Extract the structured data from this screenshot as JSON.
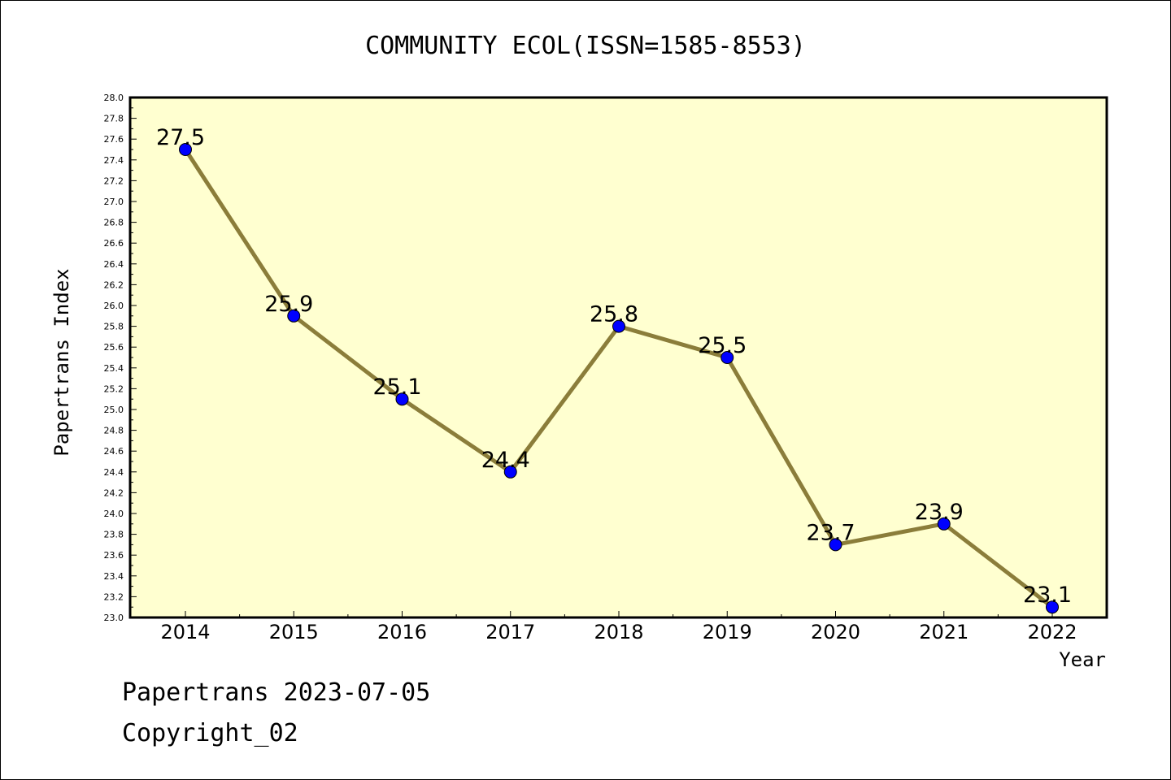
{
  "chart_data": {
    "type": "line",
    "title": "COMMUNITY ECOL(ISSN=1585-8553)",
    "xlabel": "Year",
    "ylabel": "Papertrans Index",
    "categories": [
      "2014",
      "2015",
      "2016",
      "2017",
      "2018",
      "2019",
      "2020",
      "2021",
      "2022"
    ],
    "series": [
      {
        "values": [
          27.5,
          25.9,
          25.1,
          24.4,
          25.8,
          25.5,
          23.7,
          23.9,
          23.1
        ],
        "labels": [
          "27.5",
          "25.9",
          "25.1",
          "24.4",
          "25.8",
          "25.5",
          "23.7",
          "23.9",
          "23.1"
        ]
      }
    ],
    "ylim": [
      23.0,
      28.0
    ],
    "yticks": [
      "23.0",
      "23.2",
      "23.4",
      "23.6",
      "23.8",
      "24.0",
      "24.2",
      "24.4",
      "24.6",
      "24.8",
      "25.0",
      "25.2",
      "25.4",
      "25.6",
      "25.8",
      "26.0",
      "26.2",
      "26.4",
      "26.6",
      "26.8",
      "27.0",
      "27.2",
      "27.4",
      "27.6",
      "27.8",
      "28.0"
    ],
    "grid": false,
    "legend": "none",
    "colors": {
      "plot_background": "#ffffd0",
      "line": "#8b7d3a",
      "marker": "#0000ff"
    }
  },
  "footer": {
    "date_text": "Papertrans 2023-07-05",
    "copyright_text": "Copyright_02"
  }
}
